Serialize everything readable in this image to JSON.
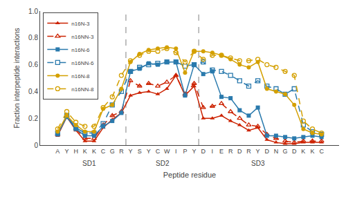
{
  "chart_data": {
    "type": "line",
    "xlabel": "Peptide residue",
    "ylabel": "Fraction interpeptide interactions",
    "categories": [
      "A",
      "Y",
      "H",
      "K",
      "K",
      "C",
      "G",
      "R",
      "Y",
      "S",
      "Y",
      "C",
      "W",
      "I",
      "P",
      "Y",
      "D",
      "I",
      "E",
      "R",
      "D",
      "R",
      "Y",
      "D",
      "N",
      "G",
      "D",
      "K",
      "K",
      "C"
    ],
    "ylim": [
      0,
      1.0
    ],
    "yticks": [
      0,
      0.2,
      0.4,
      0.6,
      0.8,
      {
        "value": 1.0,
        "label": "1.0"
      }
    ],
    "grid": false,
    "legend": "upper left",
    "series": [
      {
        "name": "n16N-3",
        "color": "#cc2200",
        "marker": "triangle-up",
        "line_style": "solid",
        "values": [
          0.07,
          0.21,
          0.11,
          0.03,
          0.03,
          0.13,
          0.19,
          0.24,
          0.37,
          0.39,
          0.4,
          0.38,
          0.42,
          0.52,
          0.37,
          0.44,
          0.2,
          0.2,
          0.22,
          0.18,
          0.15,
          0.11,
          0.13,
          0.04,
          0.02,
          0.01,
          0.01,
          0.02,
          0.02,
          0.02
        ]
      },
      {
        "name": "n16NN-3",
        "color": "#cc2200",
        "marker": "triangle-up-open",
        "line_style": "dash",
        "values": [
          0.08,
          0.22,
          0.12,
          0.05,
          0.05,
          0.15,
          0.22,
          0.25,
          0.48,
          0.44,
          0.46,
          0.44,
          0.47,
          0.52,
          0.38,
          0.46,
          0.28,
          0.29,
          0.31,
          0.25,
          0.2,
          0.15,
          0.14,
          0.08,
          0.05,
          0.03,
          0.02,
          0.03,
          0.03,
          0.03
        ]
      },
      {
        "name": "n16N-6",
        "color": "#2a7aad",
        "marker": "square",
        "line_style": "solid",
        "values": [
          0.08,
          0.21,
          0.12,
          0.07,
          0.07,
          0.14,
          0.18,
          0.24,
          0.55,
          0.57,
          0.61,
          0.6,
          0.62,
          0.62,
          0.37,
          0.6,
          0.53,
          0.55,
          0.36,
          0.35,
          0.26,
          0.22,
          0.28,
          0.07,
          0.07,
          0.06,
          0.05,
          0.06,
          0.07,
          0.06
        ]
      },
      {
        "name": "n16NN-6",
        "color": "#2a7aad",
        "marker": "square-open",
        "line_style": "dash",
        "values": [
          0.09,
          0.22,
          0.13,
          0.09,
          0.09,
          0.16,
          0.3,
          0.4,
          0.55,
          0.58,
          0.6,
          0.61,
          0.62,
          0.62,
          0.59,
          0.6,
          0.62,
          0.56,
          0.55,
          0.52,
          0.48,
          0.44,
          0.48,
          0.44,
          0.42,
          0.38,
          0.42,
          0.15,
          0.1,
          0.08
        ]
      },
      {
        "name": "n16N-8",
        "color": "#d4a000",
        "marker": "circle",
        "line_style": "solid",
        "values": [
          0.1,
          0.22,
          0.15,
          0.1,
          0.1,
          0.27,
          0.3,
          0.42,
          0.62,
          0.68,
          0.71,
          0.72,
          0.73,
          0.72,
          0.54,
          0.7,
          0.7,
          0.69,
          0.67,
          0.64,
          0.6,
          0.58,
          0.62,
          0.42,
          0.4,
          0.38,
          0.3,
          0.12,
          0.09,
          0.08
        ]
      },
      {
        "name": "n16NN-8",
        "color": "#d4a000",
        "marker": "circle-open",
        "line_style": "dash",
        "values": [
          0.12,
          0.25,
          0.17,
          0.14,
          0.14,
          0.28,
          0.36,
          0.52,
          0.63,
          0.67,
          0.7,
          0.7,
          0.72,
          0.69,
          0.62,
          0.7,
          0.64,
          0.67,
          0.67,
          0.65,
          0.63,
          0.63,
          0.64,
          0.6,
          0.58,
          0.55,
          0.52,
          0.18,
          0.12,
          0.09
        ]
      }
    ],
    "annotations": [
      {
        "text": "SD1",
        "x": 3.5
      },
      {
        "text": "SD2",
        "x": 11.5
      },
      {
        "text": "SD3",
        "x": 22.0
      }
    ],
    "vlines": [
      7.5,
      15.5
    ]
  }
}
